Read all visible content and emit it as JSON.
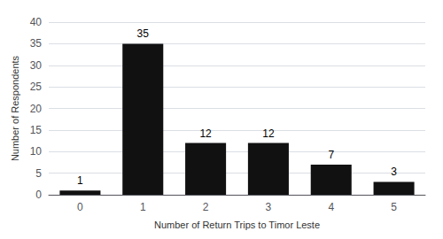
{
  "chart_data": {
    "type": "bar",
    "xlabel": "Number of Return Trips to Timor Leste",
    "ylabel": "Number of Respondents",
    "categories": [
      0,
      1,
      2,
      3,
      4,
      5
    ],
    "values": [
      1,
      35,
      12,
      12,
      7,
      3
    ],
    "color": "#111111",
    "ylim": [
      0,
      40
    ],
    "yticks": [
      0,
      5,
      10,
      15,
      20,
      25,
      30,
      35,
      40
    ],
    "grid": true,
    "data_labels": true
  }
}
